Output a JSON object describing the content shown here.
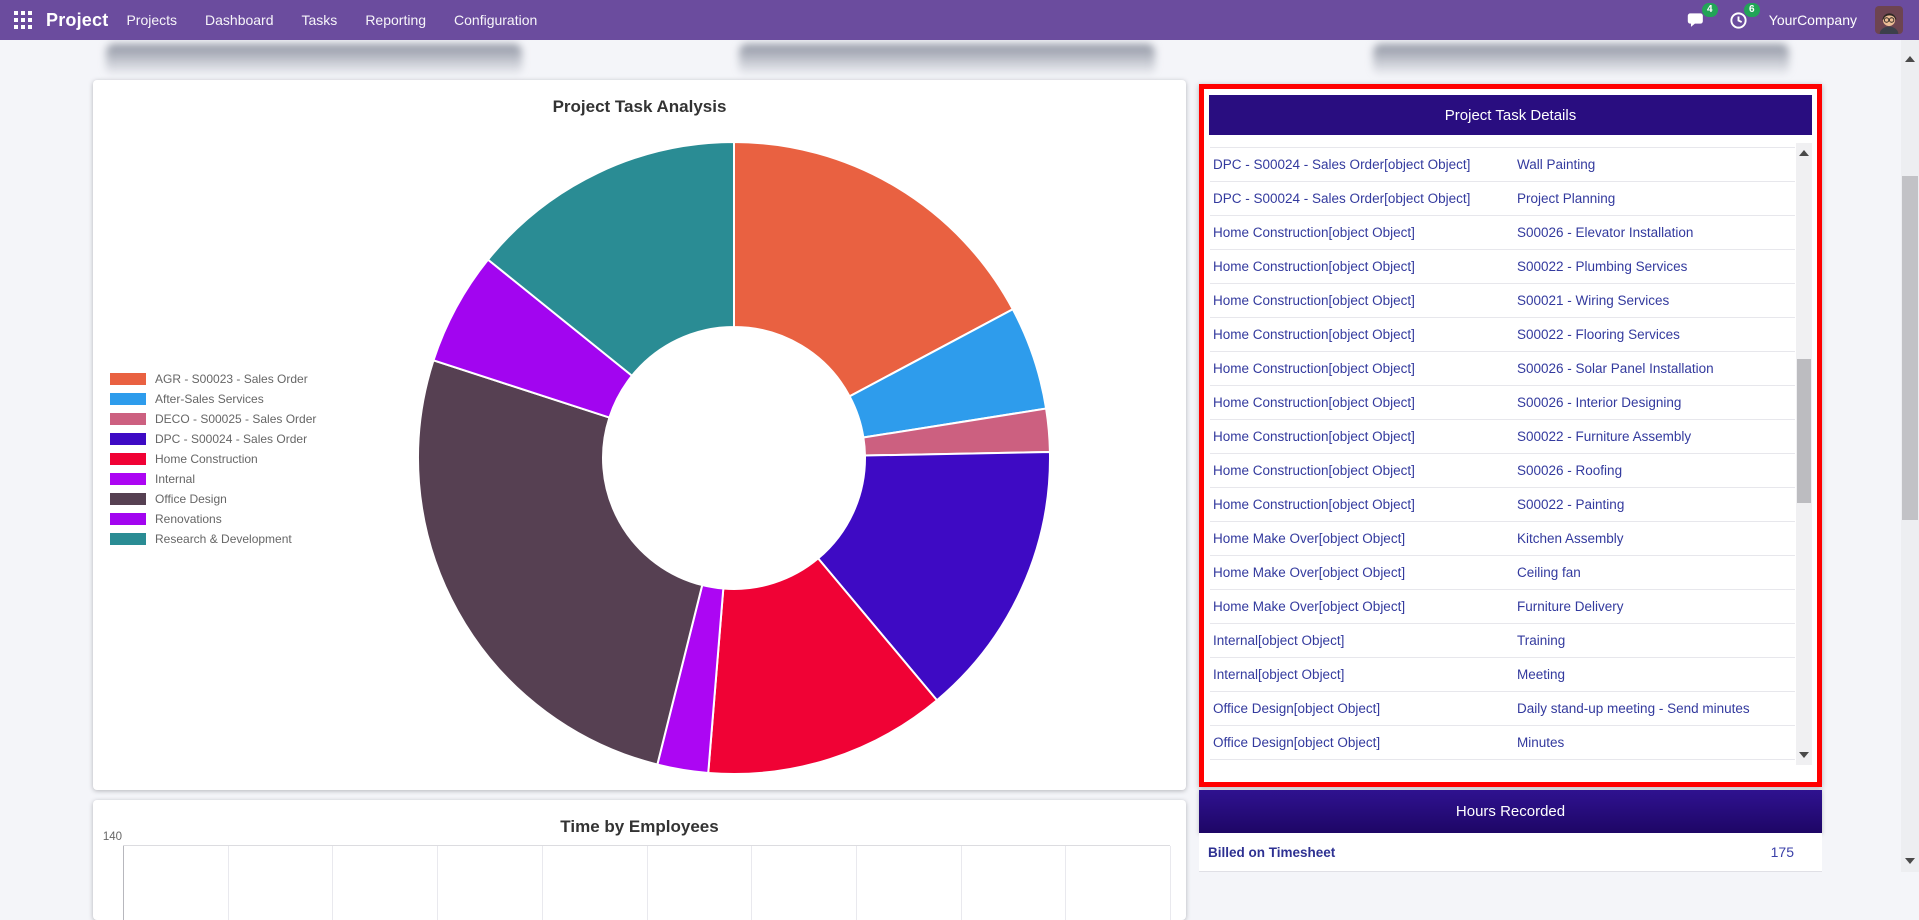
{
  "nav": {
    "app_name": "Project",
    "items": [
      "Projects",
      "Dashboard",
      "Tasks",
      "Reporting",
      "Configuration"
    ],
    "messages_badge": "4",
    "activities_badge": "6",
    "company": "YourCompany",
    "icons": {
      "apps": "grid-icon",
      "messages": "chat-bubble-icon",
      "activities": "clock-icon",
      "user": "avatar"
    }
  },
  "colors": {
    "topbar": "#6B4C9E",
    "panel_header": "#290D80",
    "highlight_border": "#FF0000",
    "row_link_text": "#333A9E",
    "badge_green": "#22A457",
    "page_background": "#F4F5F9"
  },
  "task_analysis": {
    "title": "Project Task Analysis",
    "chart_data": {
      "type": "pie",
      "title": "Project Task Analysis",
      "donut": true,
      "inner_radius_ratio": 0.41,
      "legend_position": "left",
      "start_angle_deg": 0,
      "direction": "clockwise",
      "labels": [
        "AGR - S00023 - Sales Order",
        "After-Sales Services",
        "DECO - S00025 - Sales Order",
        "DPC - S00024 - Sales Order",
        "Home Construction",
        "Internal",
        "Office Design",
        "Renovations",
        "Research & Development"
      ],
      "values": [
        17.2,
        5.3,
        2.2,
        14.2,
        12.4,
        2.6,
        26.1,
        5.8,
        14.2
      ],
      "unit": "percent-of-total (estimated from arc angles)",
      "colors": [
        "#E96141",
        "#2E9CEC",
        "#CC6080",
        "#3E0AC4",
        "#F00235",
        "#AC06F3",
        "#564052",
        "#A205F0",
        "#2A8C94"
      ]
    }
  },
  "task_details": {
    "title": "Project Task Details",
    "rows": [
      {
        "project": "DPC - S00024 - Sales Order[object Object]",
        "task": "Wall Painting"
      },
      {
        "project": "DPC - S00024 - Sales Order[object Object]",
        "task": "Project Planning"
      },
      {
        "project": "Home Construction[object Object]",
        "task": "S00026 - Elevator Installation"
      },
      {
        "project": "Home Construction[object Object]",
        "task": "S00022 - Plumbing Services"
      },
      {
        "project": "Home Construction[object Object]",
        "task": "S00021 - Wiring Services"
      },
      {
        "project": "Home Construction[object Object]",
        "task": "S00022 - Flooring Services"
      },
      {
        "project": "Home Construction[object Object]",
        "task": "S00026 - Solar Panel Installation"
      },
      {
        "project": "Home Construction[object Object]",
        "task": "S00026 - Interior Designing"
      },
      {
        "project": "Home Construction[object Object]",
        "task": "S00022 - Furniture Assembly"
      },
      {
        "project": "Home Construction[object Object]",
        "task": "S00026 - Roofing"
      },
      {
        "project": "Home Construction[object Object]",
        "task": "S00022 - Painting"
      },
      {
        "project": "Home Make Over[object Object]",
        "task": "Kitchen Assembly"
      },
      {
        "project": "Home Make Over[object Object]",
        "task": "Ceiling fan"
      },
      {
        "project": "Home Make Over[object Object]",
        "task": "Furniture Delivery"
      },
      {
        "project": "Internal[object Object]",
        "task": "Training"
      },
      {
        "project": "Internal[object Object]",
        "task": "Meeting"
      },
      {
        "project": "Office Design[object Object]",
        "task": "Daily stand-up meeting - Send minutes"
      },
      {
        "project": "Office Design[object Object]",
        "task": "Minutes"
      }
    ]
  },
  "hours_recorded": {
    "title": "Hours Recorded",
    "rows": [
      {
        "label": "Billed on Timesheet",
        "value": "175"
      }
    ]
  },
  "time_by_employees": {
    "title": "Time by Employees",
    "chart_data": {
      "type": "bar",
      "title": "Time by Employees",
      "visible_y_tick": "140",
      "note": "chart area cut off by viewport bottom; only title, top tick 140 and empty gridlines visible",
      "gridline_count": 11
    }
  }
}
